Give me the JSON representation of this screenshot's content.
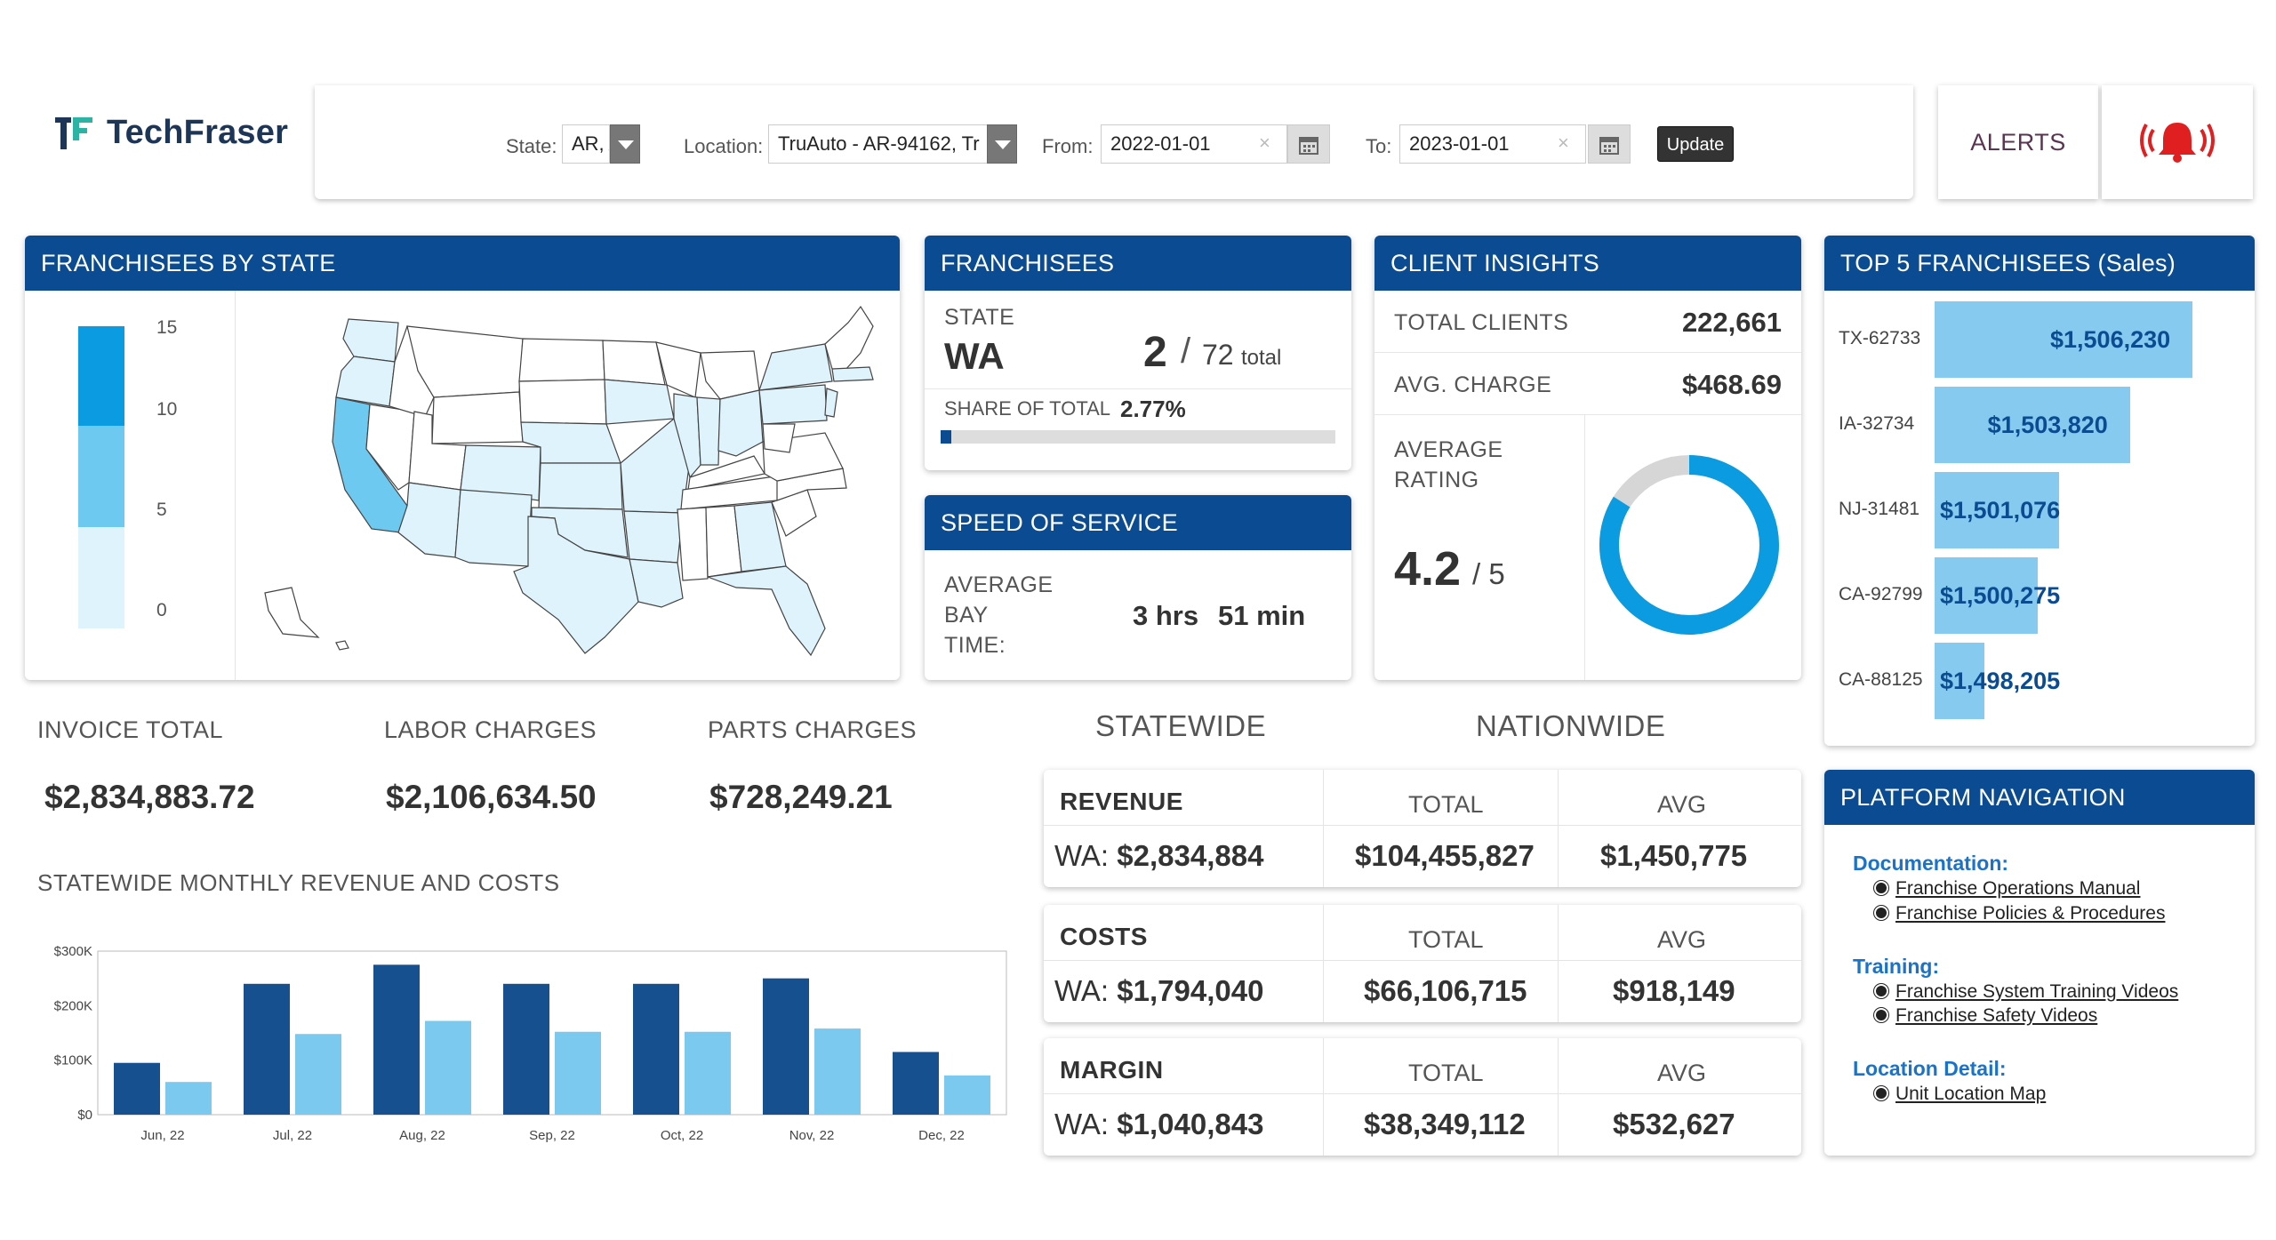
{
  "brand": {
    "name": "TechFraser"
  },
  "filters": {
    "state_label": "State:",
    "state_value": "AR, A",
    "location_label": "Location:",
    "location_value": "TruAuto - AR-94162, Tr",
    "from_label": "From:",
    "from_value": "2022-01-01",
    "to_label": "To:",
    "to_value": "2023-01-01",
    "clear_glyph": "×",
    "update_label": "Update"
  },
  "alerts": {
    "label": "ALERTS",
    "bell_glyph": "(🔔)"
  },
  "franchisees_by_state": {
    "title": "FRANCHISEES BY STATE",
    "legend_ticks": [
      "15",
      "10",
      "5",
      "0"
    ],
    "colors": {
      "high": "#0b9be0",
      "mid": "#6ec9f0",
      "low": "#dff3fc"
    }
  },
  "franchisees": {
    "title": "FRANCHISEES",
    "state_label": "STATE",
    "state_value": "WA",
    "count": "2",
    "slash": "/",
    "total": "72",
    "total_suffix": "total",
    "share_label": "SHARE OF TOTAL",
    "share_value": "2.77%",
    "share_fraction": 0.0277
  },
  "speed_of_service": {
    "title": "SPEED OF SERVICE",
    "metric_label_1": "AVERAGE",
    "metric_label_2": "BAY",
    "metric_label_3": "TIME:",
    "hours": "3 hrs",
    "minutes": "51 min"
  },
  "client_insights": {
    "title": "CLIENT INSIGHTS",
    "total_clients_label": "TOTAL CLIENTS",
    "total_clients_value": "222,661",
    "avg_charge_label": "AVG. CHARGE",
    "avg_charge_value": "$468.69",
    "rating_label_1": "AVERAGE",
    "rating_label_2": "RATING",
    "rating_value": "4.2",
    "rating_max": "/ 5",
    "rating_fraction": 0.84
  },
  "top5": {
    "title": "TOP 5 FRANCHISEES (Sales)",
    "items": [
      {
        "label": "TX-62733",
        "value": "$1,506,230",
        "amount": 1506230
      },
      {
        "label": "IA-32734",
        "value": "$1,503,820",
        "amount": 1503820
      },
      {
        "label": "NJ-31481",
        "value": "$1,501,076",
        "amount": 1501076
      },
      {
        "label": "CA-92799",
        "value": "$1,500,275",
        "amount": 1500275
      },
      {
        "label": "CA-88125",
        "value": "$1,498,205",
        "amount": 1498205
      }
    ]
  },
  "totals": {
    "invoice_label": "INVOICE TOTAL",
    "invoice_value": "$2,834,883.72",
    "labor_label": "LABOR CHARGES",
    "labor_value": "$2,106,634.50",
    "parts_label": "PARTS CHARGES",
    "parts_value": "$728,249.21"
  },
  "scope": {
    "statewide": "STATEWIDE",
    "nationwide": "NATIONWIDE"
  },
  "metrics": [
    {
      "title": "REVENUE",
      "state_prefix": "WA:",
      "state_value": "$2,834,884",
      "total_label": "TOTAL",
      "total_value": "$104,455,827",
      "avg_label": "AVG",
      "avg_value": "$1,450,775"
    },
    {
      "title": "COSTS",
      "state_prefix": "WA:",
      "state_value": "$1,794,040",
      "total_label": "TOTAL",
      "total_value": "$66,106,715",
      "avg_label": "AVG",
      "avg_value": "$918,149"
    },
    {
      "title": "MARGIN",
      "state_prefix": "WA:",
      "state_value": "$1,040,843",
      "total_label": "TOTAL",
      "total_value": "$38,349,112",
      "avg_label": "AVG",
      "avg_value": "$532,627"
    }
  ],
  "chart_title": "STATEWIDE MONTHLY REVENUE AND COSTS",
  "chart_data": {
    "type": "bar",
    "categories": [
      "Jun, 22",
      "Jul, 22",
      "Aug, 22",
      "Sep, 22",
      "Oct, 22",
      "Nov, 22",
      "Dec, 22"
    ],
    "series": [
      {
        "values": [
          95,
          240,
          275,
          240,
          240,
          250,
          115
        ],
        "color": "#17508f"
      },
      {
        "values": [
          60,
          148,
          172,
          152,
          152,
          158,
          72
        ],
        "color": "#7cc9ef"
      }
    ],
    "ylim": [
      0,
      300
    ],
    "yticks": [
      0,
      100,
      200,
      300
    ],
    "ytick_labels": [
      "$0",
      "$100K",
      "$200K",
      "$300K"
    ],
    "grid": false
  },
  "platform_nav": {
    "title": "PLATFORM NAVIGATION",
    "doc_heading": "Documentation:",
    "doc_1": "Franchise Operations Manual",
    "doc_2": "Franchise Policies & Procedures",
    "training_heading": "Training:",
    "training_1": "Franchise System Training Videos",
    "training_2": "Franchise Safety Videos",
    "location_heading": "Location Detail:",
    "location_1": "Unit Location Map"
  }
}
